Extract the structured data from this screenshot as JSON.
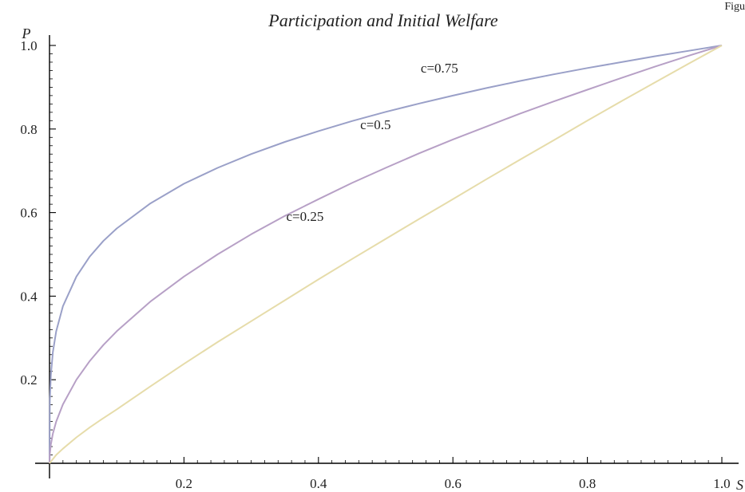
{
  "corner_text": "Figu",
  "chart_data": {
    "type": "line",
    "title": "Participation and Initial Welfare",
    "xlabel": "S",
    "ylabel": "P",
    "xlim": [
      0,
      1
    ],
    "ylim": [
      0,
      1
    ],
    "x_ticks": [
      "0.2",
      "0.4",
      "0.6",
      "0.8",
      "1.0"
    ],
    "y_ticks": [
      "0.2",
      "0.4",
      "0.6",
      "0.8",
      "1.0"
    ],
    "grid": false,
    "legend": "none (curves labeled inline)",
    "series": [
      {
        "name": "c=0.75",
        "color": "#9aa0c8",
        "x": [
          0,
          0.0005,
          0.002,
          0.005,
          0.01,
          0.02,
          0.04,
          0.06,
          0.08,
          0.1,
          0.15,
          0.2,
          0.25,
          0.3,
          0.35,
          0.4,
          0.45,
          0.5,
          0.55,
          0.6,
          0.65,
          0.7,
          0.75,
          0.8,
          0.85,
          0.9,
          0.95,
          1.0
        ],
        "y": [
          0,
          0.15,
          0.211,
          0.266,
          0.316,
          0.376,
          0.447,
          0.495,
          0.532,
          0.562,
          0.622,
          0.669,
          0.707,
          0.74,
          0.769,
          0.795,
          0.819,
          0.841,
          0.861,
          0.88,
          0.898,
          0.915,
          0.931,
          0.946,
          0.96,
          0.974,
          0.987,
          1.0
        ]
      },
      {
        "name": "c=0.5",
        "color": "#b7a0c6",
        "x": [
          0,
          0.0005,
          0.002,
          0.005,
          0.01,
          0.02,
          0.04,
          0.06,
          0.08,
          0.1,
          0.15,
          0.2,
          0.25,
          0.3,
          0.35,
          0.4,
          0.45,
          0.5,
          0.55,
          0.6,
          0.65,
          0.7,
          0.75,
          0.8,
          0.85,
          0.9,
          0.95,
          1.0
        ],
        "y": [
          0,
          0.022,
          0.045,
          0.071,
          0.1,
          0.141,
          0.2,
          0.245,
          0.283,
          0.316,
          0.387,
          0.447,
          0.5,
          0.548,
          0.592,
          0.632,
          0.671,
          0.707,
          0.742,
          0.775,
          0.806,
          0.837,
          0.866,
          0.894,
          0.922,
          0.949,
          0.975,
          1.0
        ]
      },
      {
        "name": "c=0.25",
        "color": "#e6dcaa",
        "x": [
          0,
          0.01,
          0.02,
          0.04,
          0.06,
          0.08,
          0.1,
          0.15,
          0.2,
          0.25,
          0.3,
          0.35,
          0.4,
          0.45,
          0.5,
          0.55,
          0.6,
          0.65,
          0.7,
          0.75,
          0.8,
          0.85,
          0.9,
          0.95,
          1.0
        ],
        "y": [
          0,
          0.02,
          0.035,
          0.062,
          0.086,
          0.108,
          0.129,
          0.184,
          0.238,
          0.29,
          0.34,
          0.39,
          0.44,
          0.489,
          0.537,
          0.585,
          0.632,
          0.68,
          0.727,
          0.773,
          0.82,
          0.866,
          0.911,
          0.956,
          1.0
        ]
      }
    ],
    "annotations": [
      {
        "text": "c=0.75",
        "x": 0.58,
        "y": 0.935
      },
      {
        "text": "c=0.5",
        "x": 0.485,
        "y": 0.8
      },
      {
        "text": "c=0.25",
        "x": 0.38,
        "y": 0.58
      }
    ]
  }
}
